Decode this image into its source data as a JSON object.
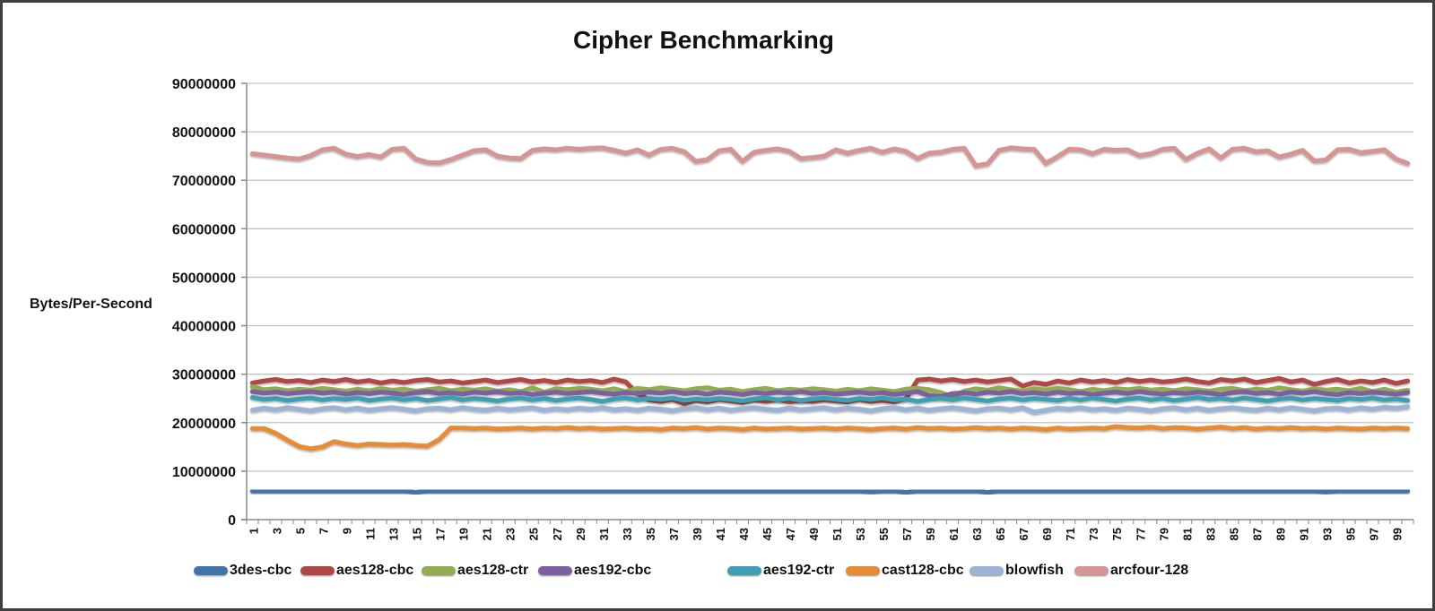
{
  "window": {
    "background": "#ffffff",
    "border_color": "#3f3f3f"
  },
  "chart_data": {
    "type": "line",
    "title": "Cipher Benchmarking",
    "xlabel": "",
    "ylabel": "Bytes/Per-Second",
    "ylim": [
      0,
      90000000
    ],
    "ytick_step": 10000000,
    "ytick_labels": [
      "90000000",
      "80000000",
      "70000000",
      "60000000",
      "50000000",
      "40000000",
      "30000000",
      "20000000",
      "10000000",
      "0"
    ],
    "xtick_labels": [
      "1",
      "3",
      "5",
      "7",
      "9",
      "11",
      "13",
      "15",
      "17",
      "19",
      "21",
      "23",
      "25",
      "27",
      "29",
      "31",
      "33",
      "35",
      "37",
      "39",
      "41",
      "43",
      "45",
      "47",
      "49",
      "51",
      "53",
      "55",
      "57",
      "59",
      "61",
      "63",
      "65",
      "67",
      "69",
      "71",
      "73",
      "75",
      "77",
      "79",
      "81",
      "83",
      "85",
      "87",
      "89",
      "91",
      "93",
      "95",
      "97",
      "99"
    ],
    "x_range": [
      1,
      100
    ],
    "grid": true,
    "legend_position": "bottom",
    "value_unit": "bytes/second",
    "value_scale": 1000000,
    "grid_color": "#c3c3c3",
    "axis_color": "#8a8a8a",
    "text_color": "#111111",
    "series": [
      {
        "name": "3des-cbc",
        "color": "#4273A9",
        "values": [
          5.9,
          5.9,
          5.9,
          5.9,
          5.9,
          5.9,
          5.9,
          5.9,
          5.9,
          5.9,
          5.9,
          5.9,
          5.9,
          5.9,
          5.6,
          5.9,
          5.9,
          5.9,
          5.9,
          5.9,
          5.9,
          5.9,
          5.9,
          5.9,
          5.9,
          5.9,
          5.9,
          5.9,
          5.9,
          5.9,
          5.9,
          5.9,
          5.9,
          5.9,
          5.9,
          5.9,
          5.9,
          5.9,
          5.9,
          5.9,
          5.9,
          5.9,
          5.9,
          5.9,
          5.9,
          5.9,
          5.9,
          5.9,
          5.9,
          5.9,
          5.9,
          5.9,
          5.9,
          5.7,
          5.9,
          5.9,
          5.6,
          5.9,
          5.9,
          5.9,
          5.9,
          5.9,
          5.9,
          5.6,
          5.9,
          5.9,
          5.9,
          5.9,
          5.9,
          5.9,
          5.9,
          5.9,
          5.9,
          5.9,
          5.9,
          5.9,
          5.9,
          5.9,
          5.9,
          5.9,
          5.9,
          5.9,
          5.9,
          5.9,
          5.9,
          5.9,
          5.9,
          5.9,
          5.9,
          5.9,
          5.9,
          5.9,
          5.7,
          5.9,
          5.9,
          5.9,
          5.9,
          5.9,
          5.9,
          5.9
        ]
      },
      {
        "name": "aes128-cbc",
        "color": "#AF4844",
        "values": [
          28.2,
          28.6,
          28.9,
          28.5,
          28.7,
          28.3,
          28.8,
          28.5,
          28.9,
          28.4,
          28.7,
          28.2,
          28.6,
          28.3,
          28.7,
          28.9,
          28.4,
          28.6,
          28.2,
          28.5,
          28.8,
          28.3,
          28.6,
          28.9,
          28.4,
          28.7,
          28.3,
          28.8,
          28.5,
          28.7,
          28.3,
          29.0,
          28.4,
          26.0,
          24.7,
          24.4,
          24.8,
          23.9,
          24.6,
          24.3,
          24.8,
          24.5,
          24.2,
          24.7,
          24.4,
          24.8,
          24.3,
          24.6,
          24.4,
          24.7,
          24.5,
          24.3,
          24.8,
          24.4,
          24.6,
          24.3,
          25.0,
          28.8,
          29.0,
          28.6,
          28.9,
          28.5,
          28.8,
          28.4,
          28.7,
          29.0,
          27.6,
          28.3,
          27.9,
          28.6,
          28.2,
          28.8,
          28.4,
          28.7,
          28.3,
          28.9,
          28.5,
          28.8,
          28.4,
          28.6,
          29.0,
          28.5,
          28.2,
          28.9,
          28.6,
          29.0,
          28.3,
          28.7,
          29.1,
          28.4,
          28.8,
          27.9,
          28.5,
          28.9,
          28.2,
          28.6,
          28.3,
          28.8,
          28.1,
          28.6
        ]
      },
      {
        "name": "aes128-ctr",
        "color": "#93AC51",
        "values": [
          27.4,
          26.8,
          27.0,
          26.6,
          26.9,
          26.7,
          27.1,
          26.8,
          26.5,
          26.9,
          26.6,
          27.0,
          26.7,
          26.9,
          26.5,
          26.8,
          27.1,
          26.6,
          26.9,
          26.7,
          27.0,
          26.5,
          26.8,
          26.4,
          27.2,
          26.3,
          27.0,
          26.8,
          27.1,
          26.9,
          26.6,
          27.0,
          26.4,
          27.1,
          26.8,
          27.2,
          26.9,
          26.6,
          27.0,
          27.2,
          26.7,
          26.9,
          26.4,
          26.8,
          27.1,
          26.6,
          26.9,
          26.7,
          27.0,
          26.8,
          26.5,
          26.9,
          26.6,
          27.0,
          26.7,
          26.4,
          26.9,
          27.1,
          26.8,
          26.2,
          25.3,
          26.5,
          27.0,
          26.7,
          27.2,
          26.8,
          26.5,
          27.0,
          26.7,
          27.1,
          26.8,
          26.4,
          26.9,
          26.6,
          27.0,
          26.8,
          27.1,
          26.7,
          26.9,
          26.6,
          27.0,
          26.8,
          26.5,
          26.9,
          27.1,
          26.6,
          26.9,
          26.7,
          27.2,
          26.8,
          26.5,
          27.0,
          26.7,
          26.9,
          26.6,
          27.1,
          26.4,
          26.9,
          26.3,
          26.7
        ]
      },
      {
        "name": "aes192-cbc",
        "color": "#7C60A0",
        "values": [
          26.4,
          26.1,
          26.3,
          26.0,
          26.2,
          26.4,
          26.1,
          26.3,
          25.9,
          26.2,
          26.0,
          26.3,
          26.1,
          25.8,
          26.2,
          26.4,
          26.0,
          26.2,
          25.9,
          26.3,
          26.1,
          26.4,
          26.0,
          26.2,
          25.8,
          26.1,
          26.3,
          26.0,
          26.2,
          26.4,
          26.1,
          25.9,
          26.2,
          26.0,
          26.3,
          26.1,
          26.4,
          26.0,
          26.2,
          25.9,
          26.3,
          26.1,
          25.8,
          26.2,
          26.0,
          26.3,
          26.1,
          26.4,
          26.0,
          26.2,
          25.9,
          26.1,
          26.3,
          26.0,
          26.2,
          25.8,
          26.1,
          26.4,
          25.6,
          25.4,
          26.0,
          26.2,
          25.9,
          26.3,
          26.1,
          26.4,
          26.0,
          26.2,
          25.9,
          26.3,
          26.0,
          26.2,
          25.8,
          26.1,
          26.3,
          26.0,
          26.4,
          26.1,
          25.9,
          26.2,
          26.0,
          26.3,
          26.1,
          25.8,
          26.2,
          26.4,
          26.0,
          26.2,
          25.9,
          26.3,
          26.1,
          26.4,
          26.0,
          25.8,
          26.2,
          26.0,
          26.3,
          26.1,
          25.9,
          26.2
        ]
      },
      {
        "name": "aes192-ctr",
        "color": "#3E9FB2",
        "values": [
          25.2,
          24.8,
          25.0,
          24.6,
          24.9,
          25.1,
          24.7,
          25.0,
          24.8,
          25.1,
          24.6,
          24.9,
          25.1,
          24.7,
          25.0,
          24.6,
          24.9,
          25.2,
          24.7,
          25.0,
          24.8,
          24.5,
          24.9,
          25.1,
          24.7,
          25.0,
          24.6,
          24.9,
          25.1,
          24.8,
          24.4,
          24.9,
          25.1,
          24.7,
          25.0,
          24.8,
          25.1,
          24.6,
          24.9,
          24.7,
          25.0,
          24.8,
          24.5,
          24.9,
          25.1,
          24.7,
          25.0,
          24.6,
          24.9,
          25.1,
          24.8,
          24.6,
          25.0,
          24.8,
          25.1,
          24.7,
          24.9,
          24.4,
          24.8,
          25.0,
          24.7,
          25.1,
          24.8,
          24.5,
          24.9,
          25.1,
          24.7,
          25.0,
          24.8,
          24.6,
          25.0,
          24.7,
          25.1,
          24.8,
          24.5,
          24.9,
          25.1,
          24.7,
          25.0,
          24.6,
          24.9,
          25.2,
          24.8,
          25.0,
          24.7,
          25.1,
          24.8,
          24.5,
          24.9,
          25.1,
          24.7,
          25.0,
          24.8,
          24.6,
          25.0,
          24.8,
          25.1,
          24.7,
          24.9,
          24.6
        ]
      },
      {
        "name": "cast128-cbc",
        "color": "#E78C35",
        "values": [
          18.8,
          18.8,
          17.8,
          16.4,
          15.1,
          14.6,
          15.0,
          16.1,
          15.6,
          15.3,
          15.6,
          15.5,
          15.4,
          15.5,
          15.3,
          15.2,
          16.5,
          18.9,
          18.9,
          18.8,
          18.9,
          18.7,
          18.8,
          18.9,
          18.7,
          18.9,
          18.8,
          19.0,
          18.8,
          18.9,
          18.7,
          18.8,
          18.9,
          18.7,
          18.8,
          18.6,
          18.9,
          18.8,
          19.0,
          18.7,
          18.9,
          18.8,
          18.6,
          18.9,
          18.7,
          18.8,
          18.9,
          18.7,
          18.8,
          18.9,
          18.7,
          18.9,
          18.8,
          18.6,
          18.8,
          18.9,
          18.7,
          19.0,
          18.8,
          18.9,
          18.7,
          18.8,
          19.0,
          18.8,
          18.9,
          18.7,
          18.9,
          18.8,
          18.6,
          18.9,
          18.7,
          18.8,
          18.9,
          18.8,
          19.2,
          19.0,
          18.9,
          19.1,
          18.8,
          19.0,
          18.9,
          18.7,
          18.9,
          19.1,
          18.8,
          19.0,
          18.7,
          18.9,
          18.8,
          19.0,
          18.8,
          18.9,
          18.7,
          18.9,
          18.8,
          18.7,
          18.9,
          18.8,
          18.9,
          18.8
        ]
      },
      {
        "name": "blowfish",
        "color": "#9DB3D6",
        "values": [
          22.6,
          23.0,
          22.7,
          23.1,
          22.8,
          22.5,
          22.9,
          23.1,
          22.7,
          23.0,
          22.6,
          22.9,
          23.1,
          22.8,
          22.5,
          22.9,
          23.0,
          22.7,
          23.1,
          22.8,
          22.6,
          23.0,
          22.7,
          22.9,
          23.1,
          22.6,
          22.9,
          22.7,
          23.0,
          22.8,
          23.1,
          22.7,
          22.9,
          22.6,
          23.0,
          22.8,
          22.5,
          22.9,
          23.1,
          22.7,
          23.0,
          22.6,
          22.9,
          23.1,
          22.8,
          22.6,
          23.0,
          22.7,
          22.9,
          23.1,
          22.7,
          23.0,
          22.8,
          22.5,
          22.9,
          23.1,
          22.7,
          23.0,
          22.6,
          22.9,
          23.1,
          22.8,
          22.5,
          22.9,
          23.0,
          22.7,
          23.1,
          22.2,
          22.6,
          23.0,
          22.8,
          23.1,
          22.7,
          22.9,
          22.6,
          23.0,
          22.8,
          22.5,
          22.9,
          23.1,
          22.7,
          23.0,
          22.6,
          22.9,
          23.1,
          22.8,
          22.6,
          23.0,
          22.7,
          23.1,
          22.8,
          22.5,
          22.9,
          23.0,
          22.7,
          23.1,
          22.8,
          23.2,
          23.0,
          23.3
        ]
      },
      {
        "name": "arcfour-128",
        "color": "#D59594",
        "values": [
          75.5,
          75.2,
          74.9,
          74.6,
          74.4,
          75.1,
          76.3,
          76.6,
          75.4,
          74.9,
          75.3,
          74.8,
          76.4,
          76.6,
          74.4,
          73.7,
          73.6,
          74.3,
          75.2,
          76.1,
          76.3,
          75.0,
          74.6,
          74.5,
          76.2,
          76.5,
          76.3,
          76.6,
          76.4,
          76.6,
          76.7,
          76.2,
          75.6,
          76.3,
          75.2,
          76.4,
          76.6,
          75.9,
          73.9,
          74.3,
          76.1,
          76.4,
          73.9,
          75.8,
          76.2,
          76.5,
          76.0,
          74.5,
          74.7,
          75.0,
          76.3,
          75.6,
          76.2,
          76.6,
          75.8,
          76.5,
          76.0,
          74.5,
          75.6,
          75.8,
          76.4,
          76.6,
          73.0,
          73.4,
          76.2,
          76.7,
          76.5,
          76.4,
          73.5,
          74.9,
          76.4,
          76.3,
          75.5,
          76.4,
          76.2,
          76.3,
          75.1,
          75.5,
          76.4,
          76.6,
          74.3,
          75.6,
          76.5,
          74.6,
          76.4,
          76.6,
          75.9,
          76.1,
          74.8,
          75.4,
          76.2,
          74.0,
          74.2,
          76.3,
          76.4,
          75.7,
          76.0,
          76.3,
          74.4,
          73.5
        ]
      }
    ]
  }
}
